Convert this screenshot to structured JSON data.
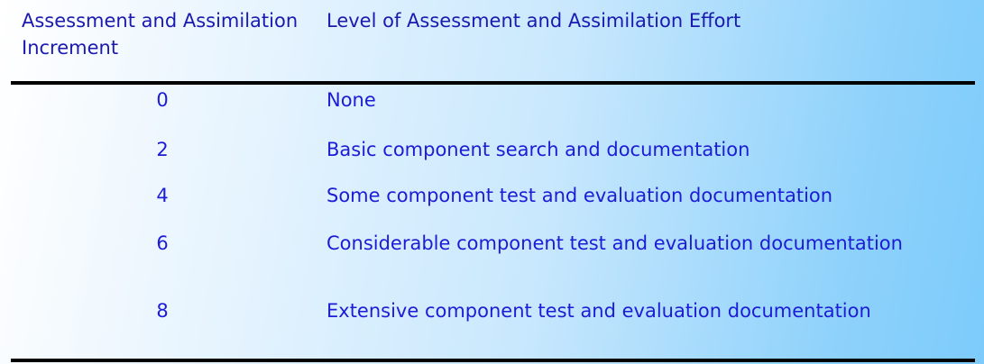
{
  "header": {
    "col1": "Assessment and Assimilation Increment",
    "col2": "Level of Assessment and Assimilation Effort"
  },
  "rows": [
    {
      "increment": "0",
      "effort": "None"
    },
    {
      "increment": "2",
      "effort": "Basic component search and documentation"
    },
    {
      "increment": "4",
      "effort": "Some component test and evaluation documentation"
    },
    {
      "increment": "6",
      "effort": "Considerable component test and evaluation documentation"
    },
    {
      "increment": "8",
      "effort": "Extensive component test and evaluation documentation"
    }
  ]
}
